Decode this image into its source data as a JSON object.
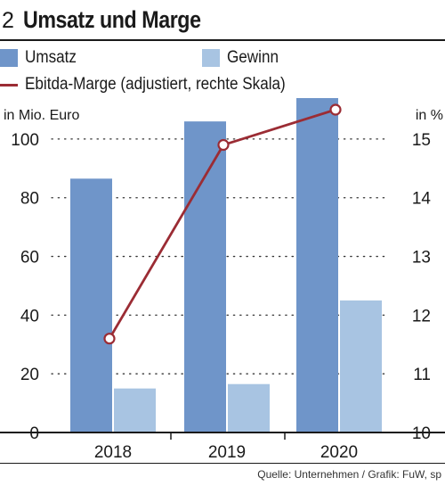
{
  "header": {
    "number": "2",
    "title": "Umsatz und Marge"
  },
  "legend": {
    "items": [
      {
        "label": "Umsatz",
        "type": "bar",
        "color": "#6f95c9"
      },
      {
        "label": "Gewinn",
        "type": "bar",
        "color": "#a8c4e2"
      },
      {
        "label": "Ebitda-Marge (adjustiert, rechte Skala)",
        "type": "line",
        "color": "#9b2c34"
      }
    ]
  },
  "source": "Quelle: Unternehmen / Grafik: FuW, sp",
  "chart_data": {
    "type": "bar",
    "categories": [
      "2018",
      "2019",
      "2020"
    ],
    "series": [
      {
        "name": "Umsatz",
        "type": "bar",
        "axis": "left",
        "color": "#6f95c9",
        "values": [
          86.5,
          106,
          116
        ]
      },
      {
        "name": "Gewinn",
        "type": "bar",
        "axis": "left",
        "color": "#a8c4e2",
        "values": [
          15,
          16.5,
          45
        ]
      },
      {
        "name": "Ebitda-Marge (adjustiert, rechte Skala)",
        "type": "line",
        "axis": "right",
        "color": "#9b2c34",
        "values": [
          11.6,
          14.9,
          15.5
        ]
      }
    ],
    "left_axis": {
      "label": "in Mio. Euro",
      "range": [
        0,
        110
      ],
      "ticks": [
        0,
        20,
        40,
        60,
        80,
        100
      ]
    },
    "right_axis": {
      "label": "in %",
      "range": [
        10,
        15.5
      ],
      "ticks": [
        10,
        11,
        12,
        13,
        14,
        15
      ]
    },
    "grid": "dotted-horizontal",
    "legend_position": "top"
  }
}
